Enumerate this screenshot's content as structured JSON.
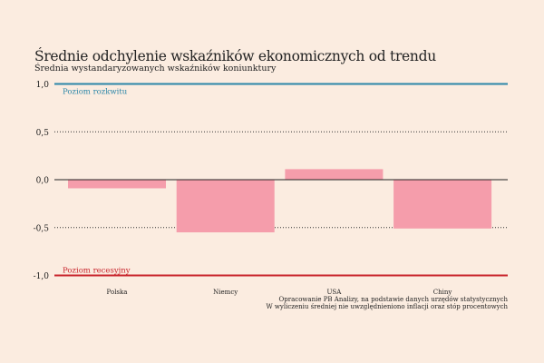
{
  "chart_data": {
    "type": "bar",
    "title": "Średnie odchylenie wskaźników ekonomicznych od trendu",
    "subtitle": "Średnia wystandaryzowanych wskaźników koniunktury",
    "categories": [
      "Polska",
      "Niemcy",
      "USA",
      "Chiny"
    ],
    "values": [
      -0.09,
      -0.55,
      0.11,
      -0.51
    ],
    "ylim": [
      -1.0,
      1.0
    ],
    "yticks": [
      1.0,
      0.5,
      0.0,
      -0.5,
      -1.0
    ],
    "ytick_labels": [
      "1,0",
      "0,5",
      "0,0",
      "-0,5",
      "-1,0"
    ],
    "grid": "dotted at ±0.5",
    "reference_lines": [
      {
        "value": 1.0,
        "label": "Poziom rozkwitu",
        "color": "#2b86a8"
      },
      {
        "value": -1.0,
        "label": "Poziom recesyjny",
        "color": "#c8242c"
      }
    ],
    "bar_color": "#f59dab",
    "source": [
      "Opracowanie PB Analizy, na podstawie danych urzędów statystycznych",
      "W wyliczeniu średniej nie uwzględnieniono inflacji oraz stóp procentowych"
    ]
  }
}
